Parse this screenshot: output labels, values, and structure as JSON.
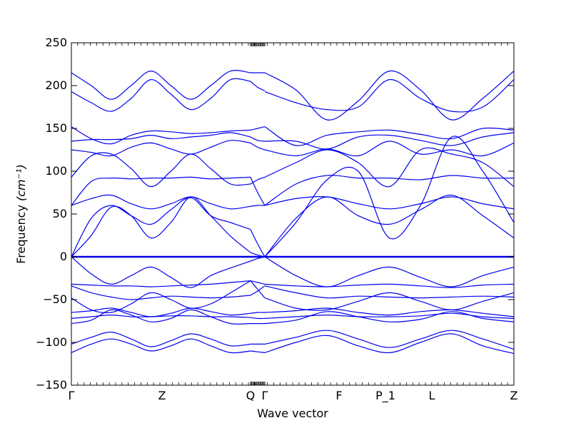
{
  "chart_data": {
    "type": "line",
    "xlabel": "Wave vector",
    "ylabel": "Frequency",
    "ylabel_unit": "(cm⁻¹)",
    "ylim": [
      -150,
      250
    ],
    "yticks": [
      -150,
      -100,
      -50,
      0,
      50,
      100,
      150,
      200,
      250
    ],
    "ytick_labels": [
      "−150",
      "−100",
      "−50",
      "0",
      "50",
      "100",
      "150",
      "200",
      "250"
    ],
    "xticks": [
      {
        "label": "Γ",
        "pos": 0.0
      },
      {
        "label": "Z",
        "pos": 0.2048
      },
      {
        "label": "Q",
        "pos": 0.4048
      },
      {
        "label": "Γ",
        "pos": 0.4371
      },
      {
        "label": "F",
        "pos": 0.6048
      },
      {
        "label": "P_1",
        "pos": 0.7097
      },
      {
        "label": "L",
        "pos": 0.8145
      },
      {
        "label": "Z",
        "pos": 1.0
      }
    ],
    "xlim": [
      0,
      1
    ],
    "grid": false,
    "line_color": "#0000ee",
    "segments": [
      {
        "name": "Γ–Z–Q",
        "x0": 0.0,
        "x1": 0.4048,
        "branches": [
          [
            215,
            200,
            184,
            200,
            217,
            200,
            184,
            200,
            217,
            215
          ],
          [
            193,
            180,
            170,
            185,
            207,
            190,
            172,
            185,
            207,
            205
          ],
          [
            152,
            138,
            132,
            142,
            147,
            146,
            144,
            145,
            147,
            148
          ],
          [
            135,
            137,
            137,
            138,
            142,
            138,
            140,
            142,
            145,
            140
          ],
          [
            125,
            122,
            118,
            128,
            133,
            126,
            120,
            128,
            136,
            133
          ],
          [
            93,
            118,
            120,
            103,
            82,
            100,
            120,
            103,
            85,
            85
          ],
          [
            60,
            68,
            72,
            62,
            56,
            62,
            70,
            62,
            56,
            59
          ],
          [
            60,
            88,
            92,
            91,
            92,
            92,
            93,
            91,
            92,
            93
          ],
          [
            0,
            45,
            60,
            48,
            38,
            55,
            69,
            48,
            40,
            32
          ],
          [
            0,
            25,
            58,
            48,
            22,
            40,
            70,
            48,
            24,
            5
          ],
          [
            0,
            -20,
            -32,
            -22,
            -12,
            -24,
            -36,
            -22,
            -13,
            -5
          ],
          [
            -32,
            -33,
            -34,
            -34,
            -35,
            -34,
            -33,
            -32,
            -30,
            -28
          ],
          [
            -34,
            -42,
            -47,
            -50,
            -48,
            -46,
            -47,
            -48,
            -47,
            -45
          ],
          [
            -48,
            -62,
            -65,
            -55,
            -42,
            -50,
            -60,
            -55,
            -42,
            -28
          ],
          [
            -65,
            -63,
            -60,
            -65,
            -70,
            -66,
            -60,
            -64,
            -68,
            -66
          ],
          [
            -72,
            -70,
            -68,
            -70,
            -70,
            -69,
            -69,
            -70,
            -70,
            -71
          ],
          [
            -78,
            -74,
            -62,
            -68,
            -76,
            -72,
            -62,
            -70,
            -78,
            -78
          ],
          [
            -102,
            -94,
            -88,
            -96,
            -105,
            -98,
            -90,
            -96,
            -104,
            -102
          ],
          [
            -112,
            -102,
            -96,
            -102,
            -110,
            -104,
            -96,
            -104,
            -112,
            -110
          ],
          [
            0,
            0,
            0,
            0,
            0,
            0,
            0,
            0,
            0,
            0
          ]
        ]
      },
      {
        "name": "Q–Γ",
        "x0": 0.4048,
        "x1": 0.4371,
        "branches": [
          [
            215,
            215,
            215
          ],
          [
            205,
            198,
            194
          ],
          [
            148,
            150,
            152
          ],
          [
            140,
            136,
            135
          ],
          [
            133,
            128,
            125
          ],
          [
            85,
            90,
            93
          ],
          [
            59,
            60,
            60
          ],
          [
            93,
            75,
            60
          ],
          [
            32,
            15,
            0
          ],
          [
            5,
            2,
            0
          ],
          [
            -5,
            -2,
            0
          ],
          [
            -28,
            -30,
            -32
          ],
          [
            -45,
            -40,
            -34
          ],
          [
            -28,
            -38,
            -48
          ],
          [
            -66,
            -65,
            -65
          ],
          [
            -71,
            -72,
            -72
          ],
          [
            -78,
            -78,
            -78
          ],
          [
            -102,
            -102,
            -102
          ],
          [
            -110,
            -111,
            -112
          ],
          [
            0,
            0,
            0
          ]
        ]
      },
      {
        "name": "Γ–F–P_1–L–Z",
        "x0": 0.4371,
        "x1": 1.0,
        "branches": [
          [
            215,
            195,
            160,
            182,
            217,
            195,
            160,
            185,
            217
          ],
          [
            193,
            180,
            172,
            175,
            207,
            185,
            170,
            175,
            207
          ],
          [
            152,
            130,
            142,
            146,
            148,
            143,
            138,
            150,
            148
          ],
          [
            135,
            135,
            126,
            140,
            142,
            136,
            130,
            140,
            145
          ],
          [
            125,
            118,
            126,
            118,
            135,
            120,
            125,
            118,
            133
          ],
          [
            93,
            110,
            125,
            110,
            82,
            125,
            120,
            110,
            82
          ],
          [
            60,
            68,
            70,
            62,
            56,
            62,
            70,
            62,
            56
          ],
          [
            60,
            85,
            95,
            92,
            92,
            90,
            95,
            92,
            92
          ],
          [
            0,
            45,
            70,
            48,
            38,
            55,
            72,
            48,
            22
          ],
          [
            0,
            40,
            90,
            100,
            22,
            60,
            140,
            100,
            40
          ],
          [
            0,
            -22,
            -35,
            -22,
            -12,
            -24,
            -35,
            -22,
            -12
          ],
          [
            -32,
            -34,
            -35,
            -33,
            -32,
            -34,
            -36,
            -33,
            -32
          ],
          [
            -34,
            -42,
            -48,
            -46,
            -47,
            -48,
            -47,
            -46,
            -47
          ],
          [
            -48,
            -60,
            -62,
            -52,
            -42,
            -52,
            -62,
            -52,
            -42
          ],
          [
            -65,
            -63,
            -60,
            -65,
            -68,
            -64,
            -62,
            -66,
            -70
          ],
          [
            -72,
            -70,
            -68,
            -70,
            -70,
            -69,
            -66,
            -70,
            -72
          ],
          [
            -78,
            -74,
            -64,
            -70,
            -76,
            -73,
            -64,
            -72,
            -76
          ],
          [
            -102,
            -94,
            -86,
            -96,
            -106,
            -96,
            -86,
            -96,
            -108
          ],
          [
            -112,
            -100,
            -92,
            -104,
            -112,
            -100,
            -90,
            -104,
            -113
          ],
          [
            0,
            0,
            0,
            0,
            0,
            0,
            0,
            0,
            0
          ]
        ]
      }
    ]
  }
}
